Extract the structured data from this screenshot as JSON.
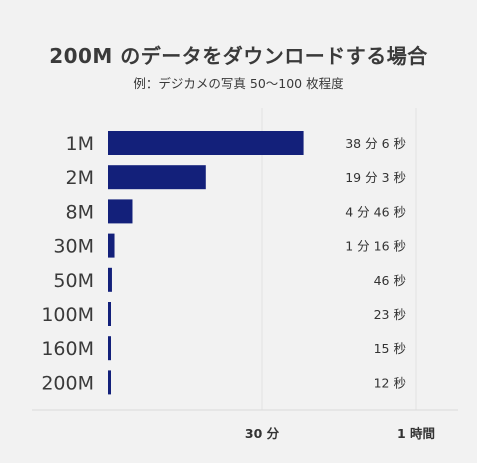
{
  "title": "200M のデータをダウンロードする場合",
  "subtitle": "例：デジカメの写真 50〜100 枚程度",
  "colors": {
    "bar": "#13207a",
    "grid": "#e2e2e2",
    "axis": "#d9d9d9",
    "background": "#f2f2f2"
  },
  "chart_data": {
    "type": "bar",
    "orientation": "horizontal",
    "categories": [
      "1M",
      "2M",
      "8M",
      "30M",
      "50M",
      "100M",
      "160M",
      "200M"
    ],
    "values": [
      38.1,
      19.05,
      4.77,
      1.27,
      0.77,
      0.38,
      0.25,
      0.2
    ],
    "value_unit": "分",
    "data_labels": [
      "38 分 6 秒",
      "19 分 3 秒",
      "4 分 46 秒",
      "1 分 16 秒",
      "46 秒",
      "23 秒",
      "15 秒",
      "12 秒"
    ],
    "x_ticks": [
      {
        "value": 30,
        "label": "30 分"
      },
      {
        "value": 60,
        "label": "1 時間"
      }
    ],
    "xlim": [
      0,
      60
    ],
    "grid": true
  }
}
